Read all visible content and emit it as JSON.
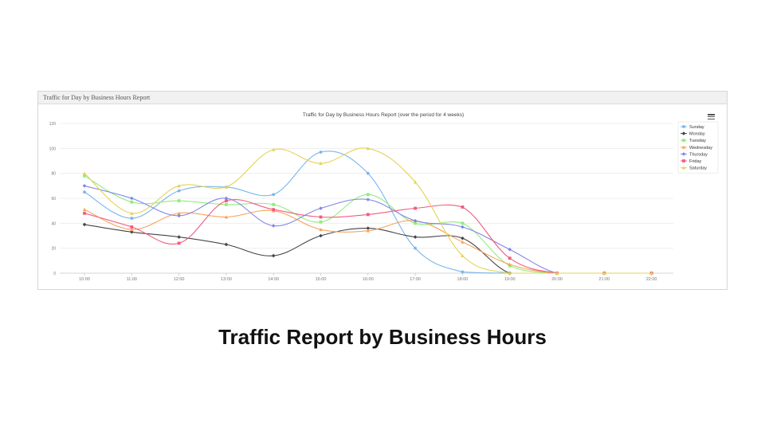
{
  "panel": {
    "title": "Traffic for Day by Business Hours Report"
  },
  "caption": "Traffic Report by Business Hours",
  "menu_icon": "hamburger-menu-icon",
  "chart_data": {
    "type": "line",
    "title": "Traffic for Day by Business Hours Report (over the period for 4 weeks)",
    "xlabel": "",
    "ylabel": "",
    "categories": [
      "10:00",
      "11:00",
      "12:00",
      "13:00",
      "14:00",
      "15:00",
      "16:00",
      "17:00",
      "18:00",
      "19:00",
      "20:00",
      "21:00",
      "22:00"
    ],
    "yticks": [
      "0",
      "20",
      "40",
      "60",
      "80",
      "100",
      "120"
    ],
    "ylim": [
      0,
      120
    ],
    "grid": true,
    "legend_position": "top-right",
    "series": [
      {
        "name": "Sunday",
        "color": "#7cb5ec",
        "marker": "circle",
        "values": [
          65,
          44,
          66,
          69,
          63,
          97,
          80,
          20,
          1,
          0,
          0,
          0,
          0
        ]
      },
      {
        "name": "Monday",
        "color": "#434348",
        "marker": "diamond",
        "values": [
          39,
          33,
          29,
          23,
          14,
          30,
          36,
          29,
          28,
          0,
          0,
          0,
          0
        ]
      },
      {
        "name": "Tuesday",
        "color": "#90ed7d",
        "marker": "square",
        "values": [
          78,
          57,
          58,
          55,
          55,
          41,
          63,
          40,
          40,
          6,
          0,
          0,
          0
        ]
      },
      {
        "name": "Wednesday",
        "color": "#f7a35c",
        "marker": "triangle",
        "values": [
          51,
          35,
          48,
          45,
          50,
          35,
          34,
          42,
          25,
          7,
          0,
          0,
          0
        ]
      },
      {
        "name": "Thursday",
        "color": "#8085e9",
        "marker": "diamond",
        "values": [
          70,
          60,
          46,
          60,
          38,
          52,
          59,
          42,
          37,
          19,
          0,
          0,
          0
        ]
      },
      {
        "name": "Friday",
        "color": "#f15c80",
        "marker": "square",
        "values": [
          48,
          37,
          24,
          58,
          51,
          45,
          47,
          52,
          53,
          12,
          0,
          0,
          0
        ]
      },
      {
        "name": "Saturday",
        "color": "#e4d354",
        "marker": "triangle",
        "values": [
          80,
          48,
          70,
          69,
          99,
          88,
          100,
          73,
          14,
          0,
          0,
          0,
          0
        ]
      }
    ]
  }
}
